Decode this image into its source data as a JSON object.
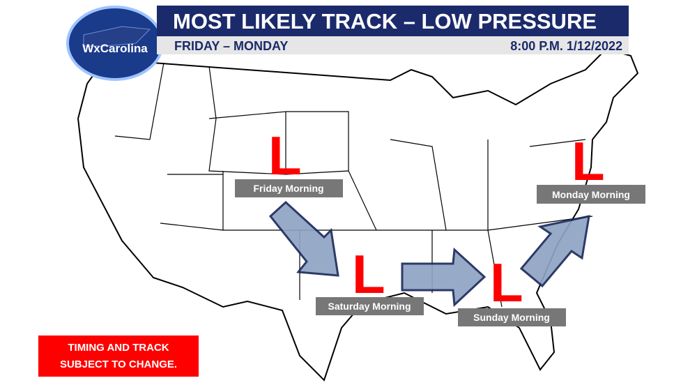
{
  "logo": "WxCarolina",
  "header": {
    "title": "MOST LIKELY TRACK – LOW PRESSURE",
    "subtitle": "FRIDAY – MONDAY",
    "timestamp": "8:00 P.M. 1/12/2022"
  },
  "lows": [
    {
      "symbol": "L",
      "label": "Friday Morning"
    },
    {
      "symbol": "L",
      "label": "Saturday Morning"
    },
    {
      "symbol": "L",
      "label": "Sunday Morning"
    },
    {
      "symbol": "L",
      "label": "Monday Morning"
    }
  ],
  "disclaimer": {
    "lines": [
      "TIMING AND TRACK",
      "SUBJECT TO CHANGE."
    ]
  }
}
